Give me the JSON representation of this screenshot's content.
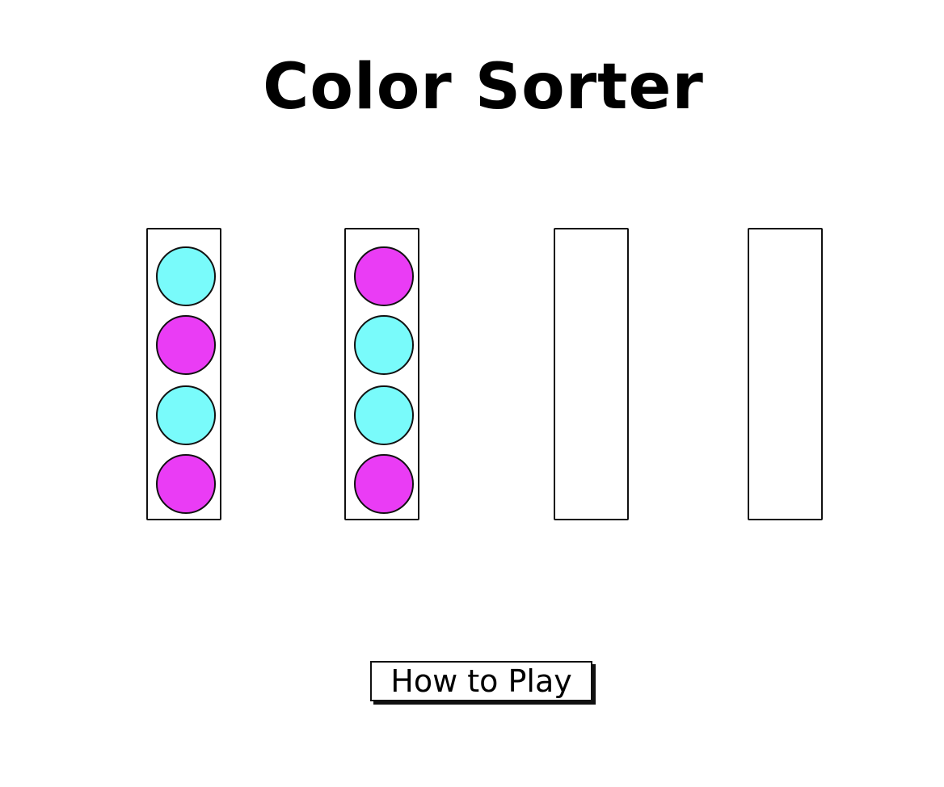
{
  "title": "Color Sorter",
  "how_to_play_label": "How to Play",
  "colors": {
    "cyan": "#79fbfb",
    "magenta": "#ea3cf5"
  },
  "tubes": [
    {
      "balls": [
        "cyan",
        "magenta",
        "cyan",
        "magenta"
      ]
    },
    {
      "balls": [
        "magenta",
        "cyan",
        "cyan",
        "magenta"
      ]
    },
    {
      "balls": []
    },
    {
      "balls": []
    }
  ]
}
